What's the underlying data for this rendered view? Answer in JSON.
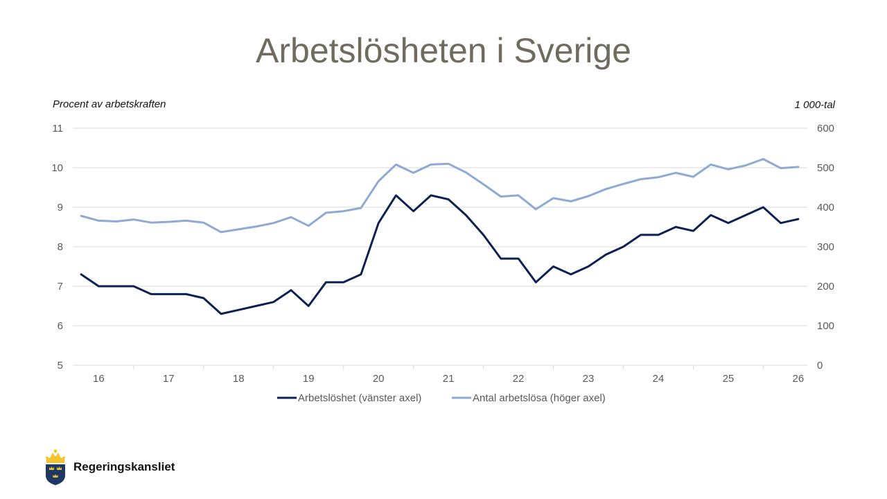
{
  "slide": {
    "title": "Arbetslösheten i Sverige",
    "logo_text": "Regeringskansliet"
  },
  "colors": {
    "title": "#6f6b5f",
    "series_left": "#0c2152",
    "series_right": "#8eaad3",
    "gridline": "#d9d9d9",
    "logo_shield": "#1f3864",
    "logo_gold": "#f4c430"
  },
  "chart_data": {
    "type": "line",
    "title": "",
    "y_left_label": "Procent av arbetskraften",
    "y_right_label": "1 000-tal",
    "y_left_lim": [
      5,
      11
    ],
    "y_left_ticks": [
      "5",
      "6",
      "7",
      "8",
      "9",
      "10",
      "11"
    ],
    "y_right_lim": [
      0,
      600
    ],
    "y_right_ticks": [
      "0",
      "100",
      "200",
      "300",
      "400",
      "500",
      "600"
    ],
    "x_tick_labels": [
      "16",
      "17",
      "18",
      "19",
      "20",
      "21",
      "22",
      "23",
      "24",
      "25",
      "26"
    ],
    "x_lim": [
      15.63,
      26.13
    ],
    "grid": true,
    "legend_position": "bottom",
    "series": [
      {
        "name": "Arbetslöshet (vänster axel)",
        "axis": "left",
        "x": [
          15.75,
          16.0,
          16.25,
          16.5,
          16.75,
          17.0,
          17.25,
          17.5,
          17.75,
          18.0,
          18.25,
          18.5,
          18.75,
          19.0,
          19.25,
          19.5,
          19.75,
          20.0,
          20.25,
          20.5,
          20.75,
          21.0,
          21.25,
          21.5,
          21.75,
          22.0,
          22.25,
          22.5,
          22.75,
          23.0,
          23.25,
          23.5,
          23.75,
          24.0,
          24.25,
          24.5,
          24.75,
          25.0,
          25.25,
          25.5,
          25.75,
          26.0
        ],
        "values": [
          7.3,
          7.0,
          7.0,
          7.0,
          6.8,
          6.8,
          6.8,
          6.7,
          6.3,
          6.4,
          6.5,
          6.6,
          6.9,
          6.5,
          7.1,
          7.1,
          7.3,
          8.6,
          9.3,
          8.9,
          9.3,
          9.2,
          8.8,
          8.3,
          7.7,
          7.7,
          7.1,
          7.5,
          7.3,
          7.5,
          7.8,
          8.0,
          8.3,
          8.3,
          8.5,
          8.4,
          8.8,
          8.6,
          8.8,
          9.0,
          8.6,
          8.7
        ]
      },
      {
        "name": "Antal arbetslösa (höger axel)",
        "axis": "right",
        "x": [
          15.75,
          16.0,
          16.25,
          16.5,
          16.75,
          17.0,
          17.25,
          17.5,
          17.75,
          18.0,
          18.25,
          18.5,
          18.75,
          19.0,
          19.25,
          19.5,
          19.75,
          20.0,
          20.25,
          20.5,
          20.75,
          21.0,
          21.25,
          21.5,
          21.75,
          22.0,
          22.25,
          22.5,
          22.75,
          23.0,
          23.25,
          23.5,
          23.75,
          24.0,
          24.25,
          24.5,
          24.75,
          25.0,
          25.25,
          25.5,
          25.75,
          26.0
        ],
        "values": [
          378,
          366,
          364,
          369,
          361,
          363,
          366,
          361,
          337,
          344,
          351,
          360,
          375,
          353,
          386,
          390,
          398,
          466,
          508,
          487,
          508,
          510,
          488,
          458,
          427,
          430,
          395,
          423,
          415,
          428,
          446,
          459,
          471,
          476,
          487,
          477,
          508,
          496,
          506,
          522,
          499,
          502
        ]
      }
    ]
  }
}
